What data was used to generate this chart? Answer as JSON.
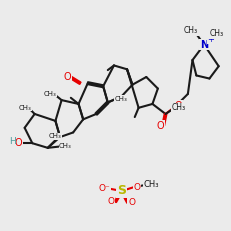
{
  "bg_color": "#ebebeb",
  "bond_color": "#1a1a1a",
  "o_color": "#e60000",
  "n_color": "#0000cc",
  "h_color": "#4a9a9a",
  "s_color": "#b8b800",
  "lw": 1.5
}
